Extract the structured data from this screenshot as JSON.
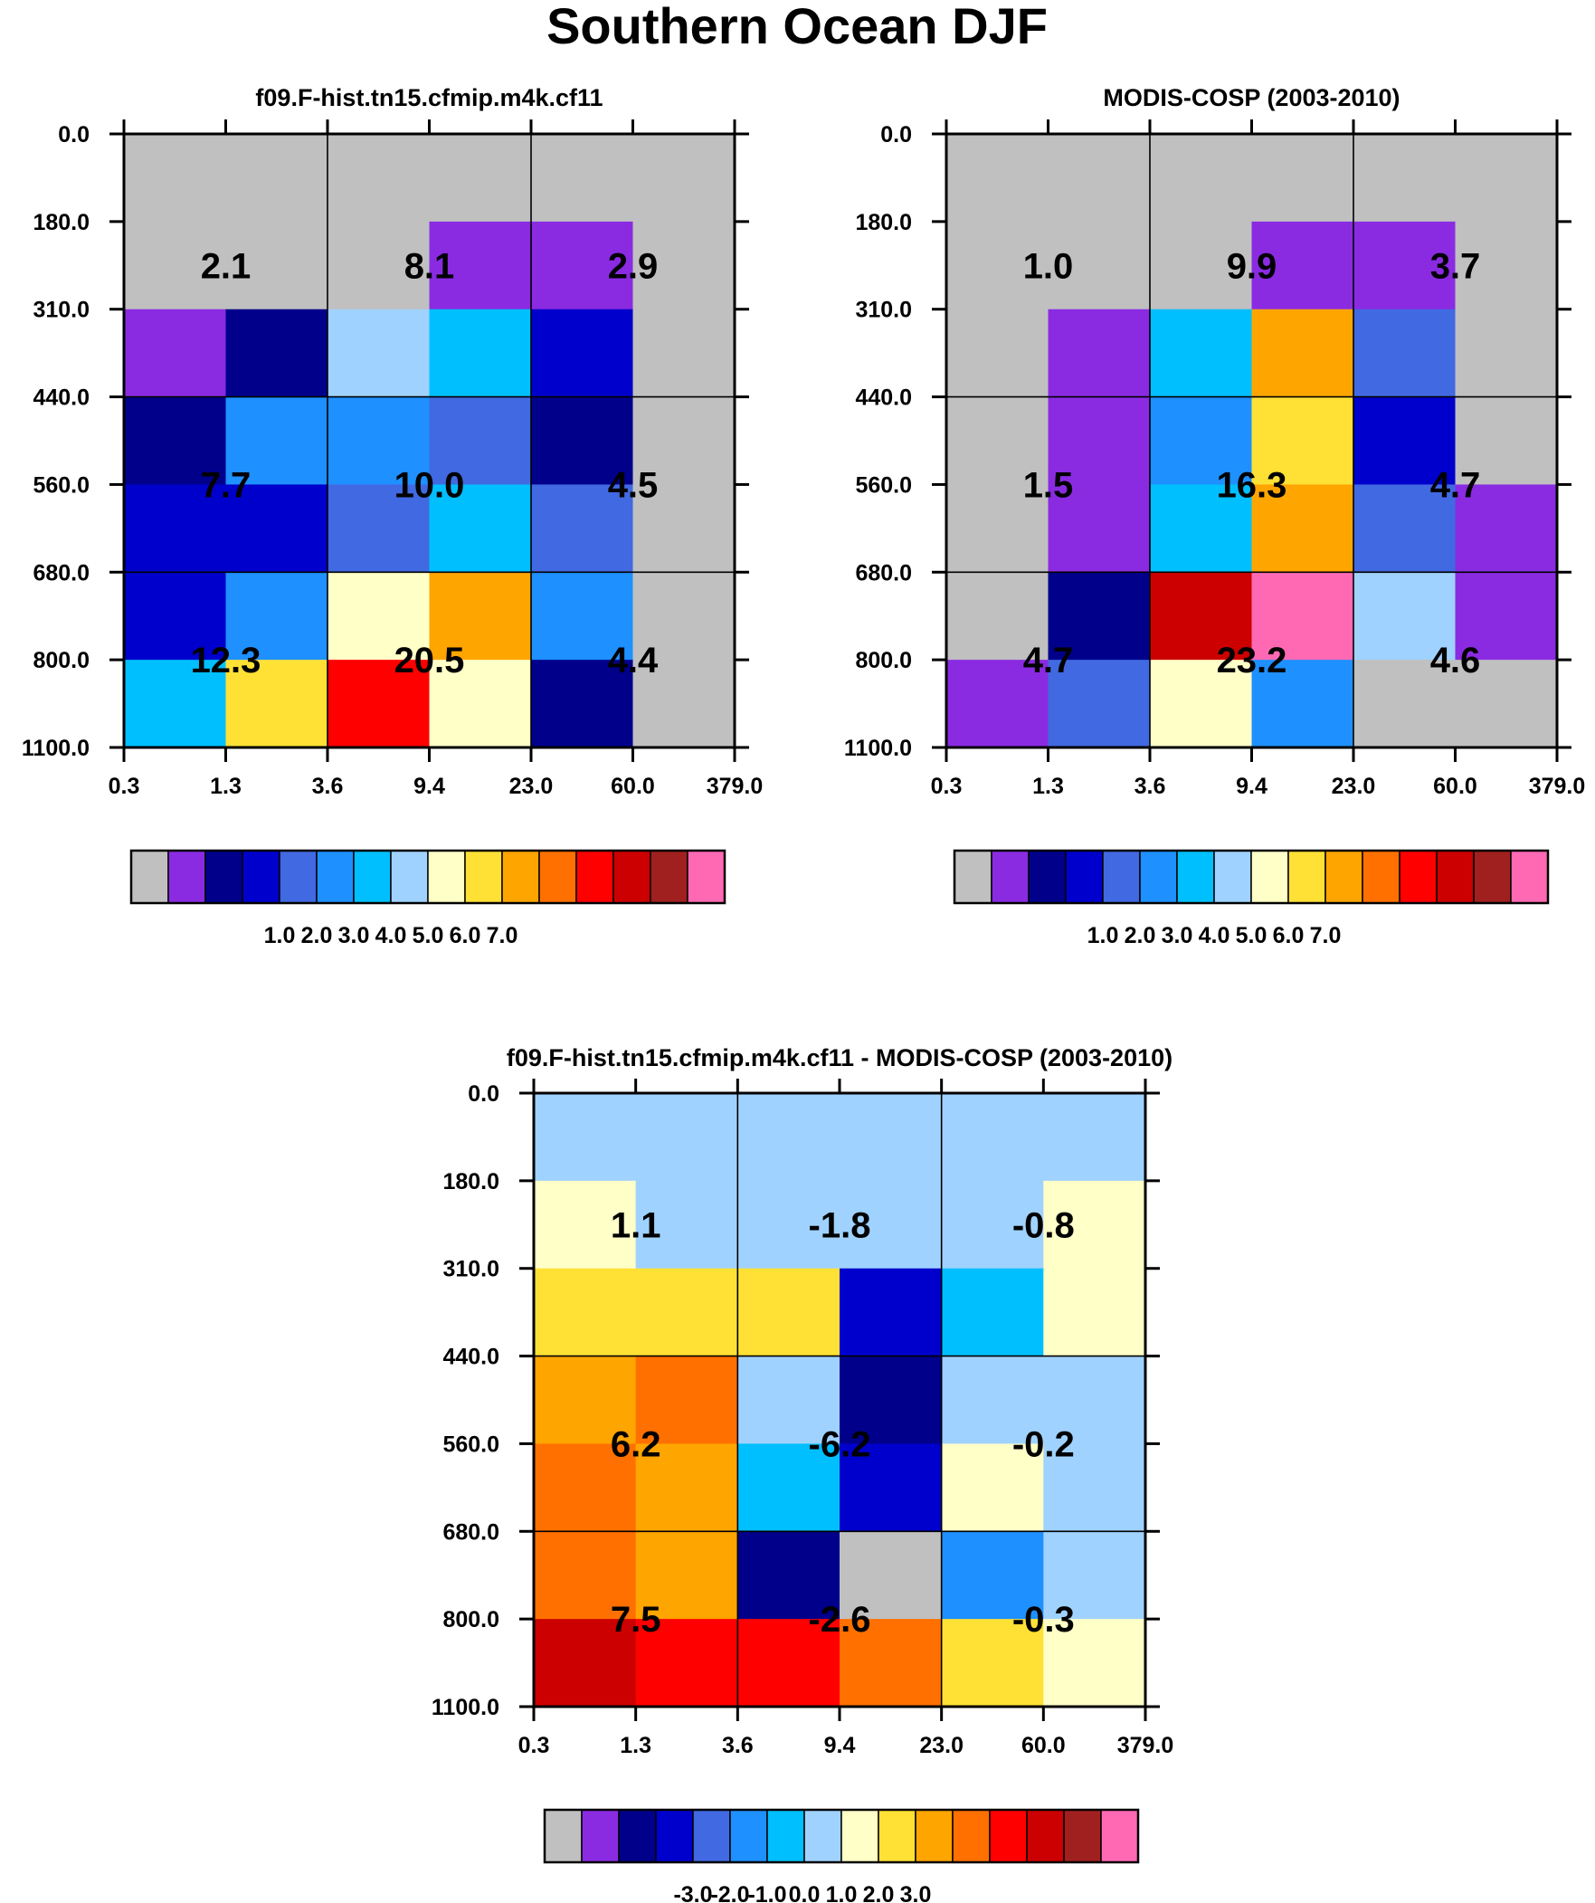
{
  "title": "Southern Ocean DJF",
  "palette": [
    "#c0c0c0",
    "#8a2be2",
    "#00008b",
    "#0000cd",
    "#4169e1",
    "#1e90ff",
    "#00bfff",
    "#a0d2ff",
    "#ffffc8",
    "#ffe135",
    "#ffa500",
    "#ff7000",
    "#ff0000",
    "#cc0000",
    "#a02020",
    "#ff69b4"
  ],
  "chart_data": [
    {
      "type": "heatmap",
      "title": "f09.F-hist.tn15.cfmip.m4k.cf11",
      "xticks": [
        "0.3",
        "1.3",
        "3.6",
        "9.4",
        "23.0",
        "60.0",
        "379.0"
      ],
      "yticks": [
        "0.0",
        "180.0",
        "310.0",
        "440.0",
        "560.0",
        "680.0",
        "800.0",
        "1100.0"
      ],
      "cells": [
        [
          0,
          0,
          0,
          0,
          0,
          0
        ],
        [
          0,
          0,
          0,
          1,
          1,
          0
        ],
        [
          1,
          2,
          7,
          6,
          3,
          0
        ],
        [
          2,
          5,
          5,
          4,
          2,
          0
        ],
        [
          3,
          3,
          4,
          6,
          4,
          0
        ],
        [
          3,
          5,
          8,
          10,
          5,
          0
        ],
        [
          6,
          9,
          12,
          8,
          2,
          0
        ]
      ],
      "summary_values": [
        [
          "2.1",
          "8.1",
          "2.9"
        ],
        [
          "7.7",
          "10.0",
          "4.5"
        ],
        [
          "12.3",
          "20.5",
          "4.4"
        ]
      ],
      "colorbar_labels": [
        "1.0",
        "2.0",
        "3.0",
        "4.0",
        "5.0",
        "6.0",
        "7.0"
      ]
    },
    {
      "type": "heatmap",
      "title": "MODIS-COSP (2003-2010)",
      "xticks": [
        "0.3",
        "1.3",
        "3.6",
        "9.4",
        "23.0",
        "60.0",
        "379.0"
      ],
      "yticks": [
        "0.0",
        "180.0",
        "310.0",
        "440.0",
        "560.0",
        "680.0",
        "800.0",
        "1100.0"
      ],
      "cells": [
        [
          0,
          0,
          0,
          0,
          0,
          0
        ],
        [
          0,
          0,
          0,
          1,
          1,
          0
        ],
        [
          0,
          1,
          6,
          10,
          4,
          0
        ],
        [
          0,
          1,
          5,
          9,
          3,
          0
        ],
        [
          0,
          1,
          6,
          10,
          4,
          1
        ],
        [
          0,
          2,
          13,
          15,
          7,
          1
        ],
        [
          1,
          4,
          8,
          5,
          0,
          0
        ]
      ],
      "summary_values": [
        [
          "1.0",
          "9.9",
          "3.7"
        ],
        [
          "1.5",
          "16.3",
          "4.7"
        ],
        [
          "4.7",
          "23.2",
          "4.6"
        ]
      ],
      "colorbar_labels": [
        "1.0",
        "2.0",
        "3.0",
        "4.0",
        "5.0",
        "6.0",
        "7.0"
      ]
    },
    {
      "type": "heatmap",
      "title": "f09.F-hist.tn15.cfmip.m4k.cf11 - MODIS-COSP (2003-2010)",
      "xticks": [
        "0.3",
        "1.3",
        "3.6",
        "9.4",
        "23.0",
        "60.0",
        "379.0"
      ],
      "yticks": [
        "0.0",
        "180.0",
        "310.0",
        "440.0",
        "560.0",
        "680.0",
        "800.0",
        "1100.0"
      ],
      "cells": [
        [
          7,
          7,
          7,
          7,
          7,
          7
        ],
        [
          8,
          7,
          7,
          7,
          7,
          8
        ],
        [
          9,
          9,
          9,
          3,
          6,
          8
        ],
        [
          10,
          11,
          7,
          2,
          7,
          7
        ],
        [
          11,
          10,
          6,
          3,
          8,
          7
        ],
        [
          11,
          10,
          2,
          0,
          5,
          7
        ],
        [
          13,
          12,
          12,
          11,
          9,
          8
        ]
      ],
      "summary_values": [
        [
          "1.1",
          "-1.8",
          "-0.8"
        ],
        [
          "6.2",
          "-6.2",
          "-0.2"
        ],
        [
          "7.5",
          "-2.6",
          "-0.3"
        ]
      ],
      "colorbar_labels": [
        "-3.0",
        "-2.0",
        "-1.0",
        "0.0",
        "1.0",
        "2.0",
        "3.0"
      ]
    }
  ]
}
